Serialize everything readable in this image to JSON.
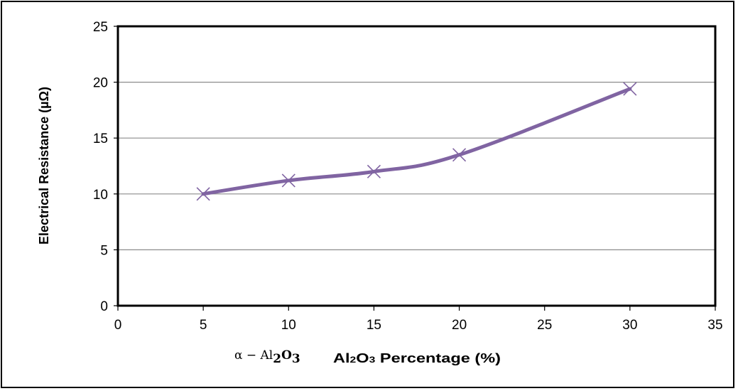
{
  "chart_data": {
    "type": "line",
    "x": [
      5,
      10,
      15,
      20,
      30
    ],
    "series": [
      {
        "values": [
          10.0,
          11.2,
          12.0,
          13.5,
          19.4
        ],
        "color": "#8064a2",
        "marker": "x"
      }
    ],
    "xlabel_formula": "α − Al",
    "xlabel_formula_sub2": "2",
    "xlabel_formula_O": "O",
    "xlabel_formula_sub3": "3",
    "xlabel": "Al2O3 Percentage (%)",
    "xlabel_parts": {
      "al": "Al",
      "sub2": "2",
      "o": "O",
      "sub3": "3",
      "rest": " Percentage (%)"
    },
    "ylabel": "Electrical Resistance (µΩ)",
    "xlim": [
      0,
      35
    ],
    "ylim": [
      0,
      25
    ],
    "xticks": [
      "0",
      "5",
      "10",
      "15",
      "20",
      "25",
      "30",
      "35"
    ],
    "yticks": [
      "0",
      "5",
      "10",
      "15",
      "20",
      "25"
    ],
    "grid": "horizontal",
    "legend": "none"
  }
}
